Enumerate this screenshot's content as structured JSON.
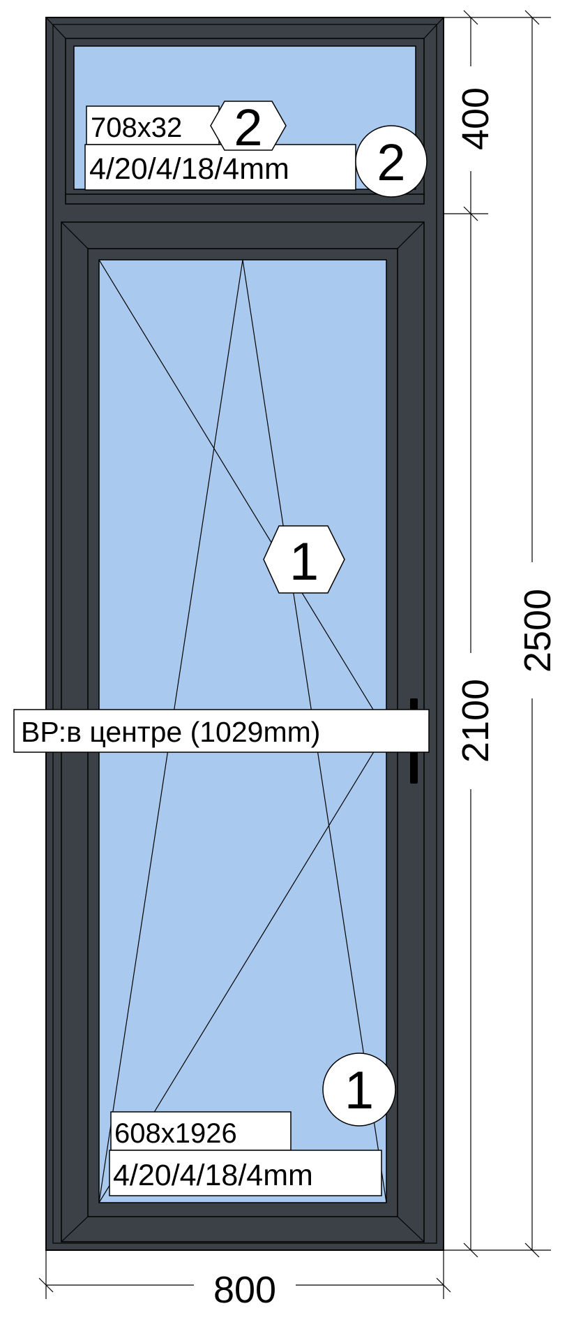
{
  "colors": {
    "frame": "#3b4147",
    "frame_edge": "#000000",
    "glass": "#a9c9ef",
    "background": "#ffffff"
  },
  "transom": {
    "size_label": "708x32",
    "glass_label": "4/20/4/18/4mm",
    "hex_marker": "2",
    "circle_marker": "2"
  },
  "sash": {
    "size_label": "608x1926",
    "glass_label": "4/20/4/18/4mm",
    "hex_marker": "1",
    "circle_marker": "1"
  },
  "handle_note": "ВР:в центре (1029mm)",
  "dimensions": {
    "transom_height": "400",
    "sash_height": "2100",
    "total_height": "2500",
    "total_width": "800"
  }
}
